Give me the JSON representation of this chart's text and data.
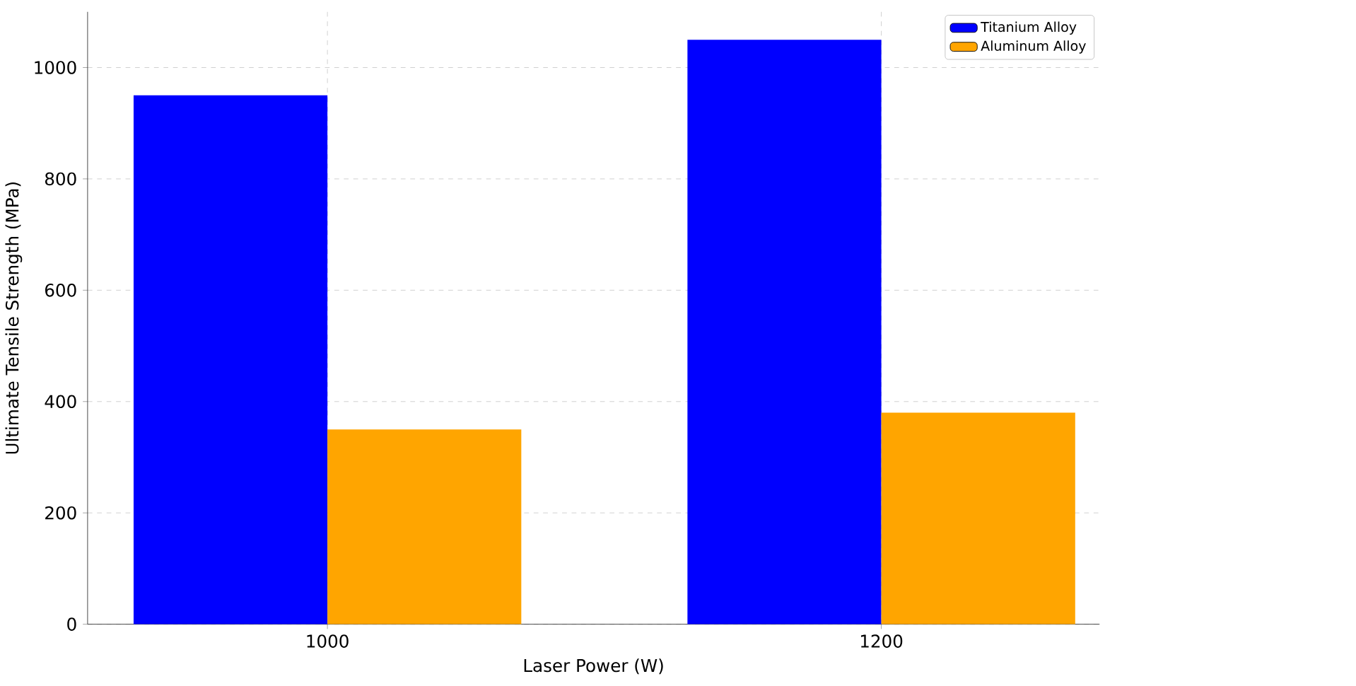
{
  "chart_data": {
    "type": "bar",
    "xlabel": "Laser Power (W)",
    "ylabel": "Ultimate Tensile Strength (MPa)",
    "categories": [
      "1000",
      "1200"
    ],
    "series": [
      {
        "name": "Titanium Alloy",
        "color": "#0000ff",
        "values": [
          950,
          1050
        ]
      },
      {
        "name": "Aluminum Alloy",
        "color": "#ffa500",
        "values": [
          350,
          380
        ]
      }
    ],
    "ylim": [
      0,
      1100
    ],
    "yticks": [
      0,
      200,
      400,
      600,
      800,
      1000
    ],
    "grid": true,
    "legend": "top right"
  }
}
